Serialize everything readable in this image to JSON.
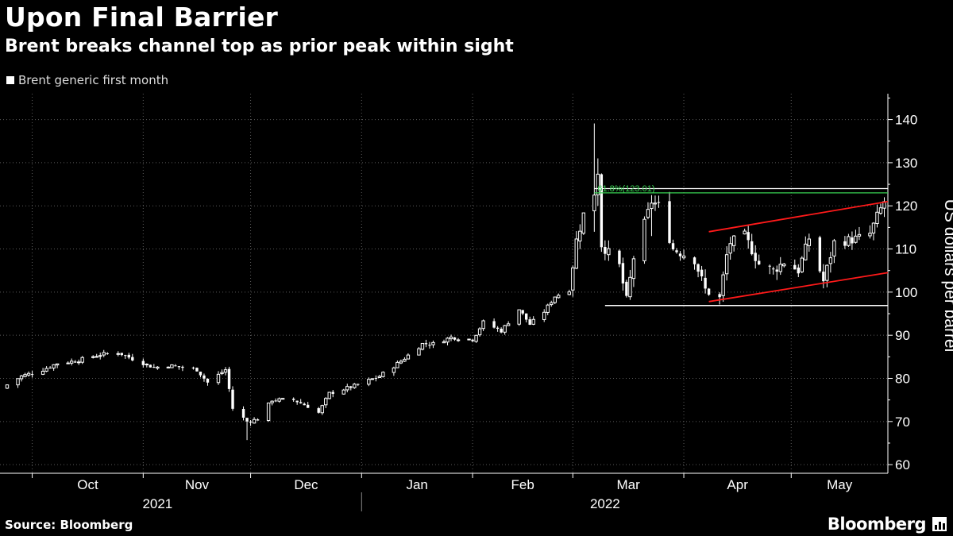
{
  "header": {
    "title": "Upon Final Barrier",
    "subtitle": "Brent breaks channel top as prior peak within sight"
  },
  "legend": {
    "label": "Brent generic first month",
    "color": "#ffffff"
  },
  "footer": {
    "source": "Source: Bloomberg",
    "brand": "Bloomberg"
  },
  "chart_data": {
    "type": "candlestick",
    "ylabel": "US dollars per barrel",
    "ylim": [
      58,
      146
    ],
    "yticks": [
      60,
      70,
      80,
      90,
      100,
      110,
      120,
      130,
      140
    ],
    "xlim": [
      "2021-09-22",
      "2022-05-28"
    ],
    "month_labels": [
      {
        "label": "Oct",
        "date": "2021-10-01"
      },
      {
        "label": "Nov",
        "date": "2021-11-01"
      },
      {
        "label": "Dec",
        "date": "2021-12-01"
      },
      {
        "label": "Jan",
        "date": "2022-01-01"
      },
      {
        "label": "Feb",
        "date": "2022-02-01"
      },
      {
        "label": "Mar",
        "date": "2022-03-01"
      },
      {
        "label": "Apr",
        "date": "2022-04-01"
      },
      {
        "label": "May",
        "date": "2022-05-01"
      }
    ],
    "year_labels": [
      {
        "label": "2021",
        "date": "2021-11-05"
      },
      {
        "label": "2022",
        "date": "2022-03-10"
      }
    ],
    "year_divider": "2022-01-01",
    "grid": true,
    "legend_position": "top-left",
    "candle_color": "#ffffff",
    "anchors": [
      [
        "2021-09-24",
        78.5
      ],
      [
        "2021-09-28",
        80.5
      ],
      [
        "2021-10-04",
        82.0
      ],
      [
        "2021-10-08",
        83.5
      ],
      [
        "2021-10-13",
        84.0
      ],
      [
        "2021-10-20",
        85.5
      ],
      [
        "2021-10-25",
        86.0
      ],
      [
        "2021-10-29",
        84.5
      ],
      [
        "2021-11-04",
        82.5
      ],
      [
        "2021-11-08",
        83.0
      ],
      [
        "2021-11-12",
        82.5
      ],
      [
        "2021-11-16",
        82.0
      ],
      [
        "2021-11-19",
        79.0
      ],
      [
        "2021-11-24",
        82.0
      ],
      [
        "2021-11-26",
        73.0
      ],
      [
        "2021-11-30",
        70.0
      ],
      [
        "2021-12-03",
        70.5
      ],
      [
        "2021-12-07",
        75.0
      ],
      [
        "2021-12-13",
        75.0
      ],
      [
        "2021-12-17",
        73.5
      ],
      [
        "2021-12-20",
        72.0
      ],
      [
        "2021-12-23",
        76.5
      ],
      [
        "2021-12-31",
        78.5
      ],
      [
        "2022-01-06",
        80.5
      ],
      [
        "2022-01-12",
        84.0
      ],
      [
        "2022-01-18",
        88.0
      ],
      [
        "2022-01-21",
        88.0
      ],
      [
        "2022-01-26",
        89.5
      ],
      [
        "2022-02-01",
        89.0
      ],
      [
        "2022-02-04",
        93.0
      ],
      [
        "2022-02-09",
        91.0
      ],
      [
        "2022-02-14",
        96.0
      ],
      [
        "2022-02-17",
        92.5
      ],
      [
        "2022-02-21",
        95.5
      ],
      [
        "2022-02-24",
        99.0
      ],
      [
        "2022-02-28",
        100.5
      ],
      [
        "2022-03-02",
        112.0
      ],
      [
        "2022-03-04",
        118.0
      ],
      [
        "2022-03-07",
        123.0
      ],
      [
        "2022-03-08",
        128.0
      ],
      [
        "2022-03-09",
        111.0
      ],
      [
        "2022-03-14",
        106.0
      ],
      [
        "2022-03-16",
        98.0
      ],
      [
        "2022-03-18",
        108.0
      ],
      [
        "2022-03-23",
        121.0
      ],
      [
        "2022-03-25",
        120.0
      ],
      [
        "2022-03-29",
        110.0
      ],
      [
        "2022-04-04",
        107.5
      ],
      [
        "2022-04-07",
        100.5
      ],
      [
        "2022-04-11",
        98.5
      ],
      [
        "2022-04-13",
        108.5
      ],
      [
        "2022-04-14",
        111.5
      ],
      [
        "2022-04-18",
        113.0
      ],
      [
        "2022-04-22",
        106.5
      ],
      [
        "2022-04-26",
        105.0
      ],
      [
        "2022-04-29",
        107.0
      ],
      [
        "2022-05-03",
        105.0
      ],
      [
        "2022-05-06",
        112.5
      ],
      [
        "2022-05-10",
        102.5
      ],
      [
        "2022-05-13",
        111.5
      ],
      [
        "2022-05-17",
        112.0
      ],
      [
        "2022-05-20",
        112.5
      ],
      [
        "2022-05-23",
        113.5
      ],
      [
        "2022-05-25",
        117.5
      ],
      [
        "2022-05-27",
        121.0
      ]
    ],
    "annotations": {
      "fib_label": "61.8%(123.01)",
      "fib_level": 123.01,
      "prior_peak_level": 124.0,
      "fib_lines": {
        "start": "2022-03-07",
        "end": "2022-05-28",
        "color": "#39d353",
        "top_color": "#ffffff"
      },
      "support_line": {
        "start": "2022-03-10",
        "end": "2022-05-28",
        "level": 96.9,
        "color": "#ffffff"
      },
      "channel_top": {
        "start": [
          "2022-04-08",
          114.0
        ],
        "end": [
          "2022-05-28",
          121.0
        ],
        "color": "#ff1a1a"
      },
      "channel_bottom": {
        "start": [
          "2022-04-08",
          97.8
        ],
        "end": [
          "2022-05-28",
          104.5
        ],
        "color": "#ff1a1a"
      }
    }
  }
}
